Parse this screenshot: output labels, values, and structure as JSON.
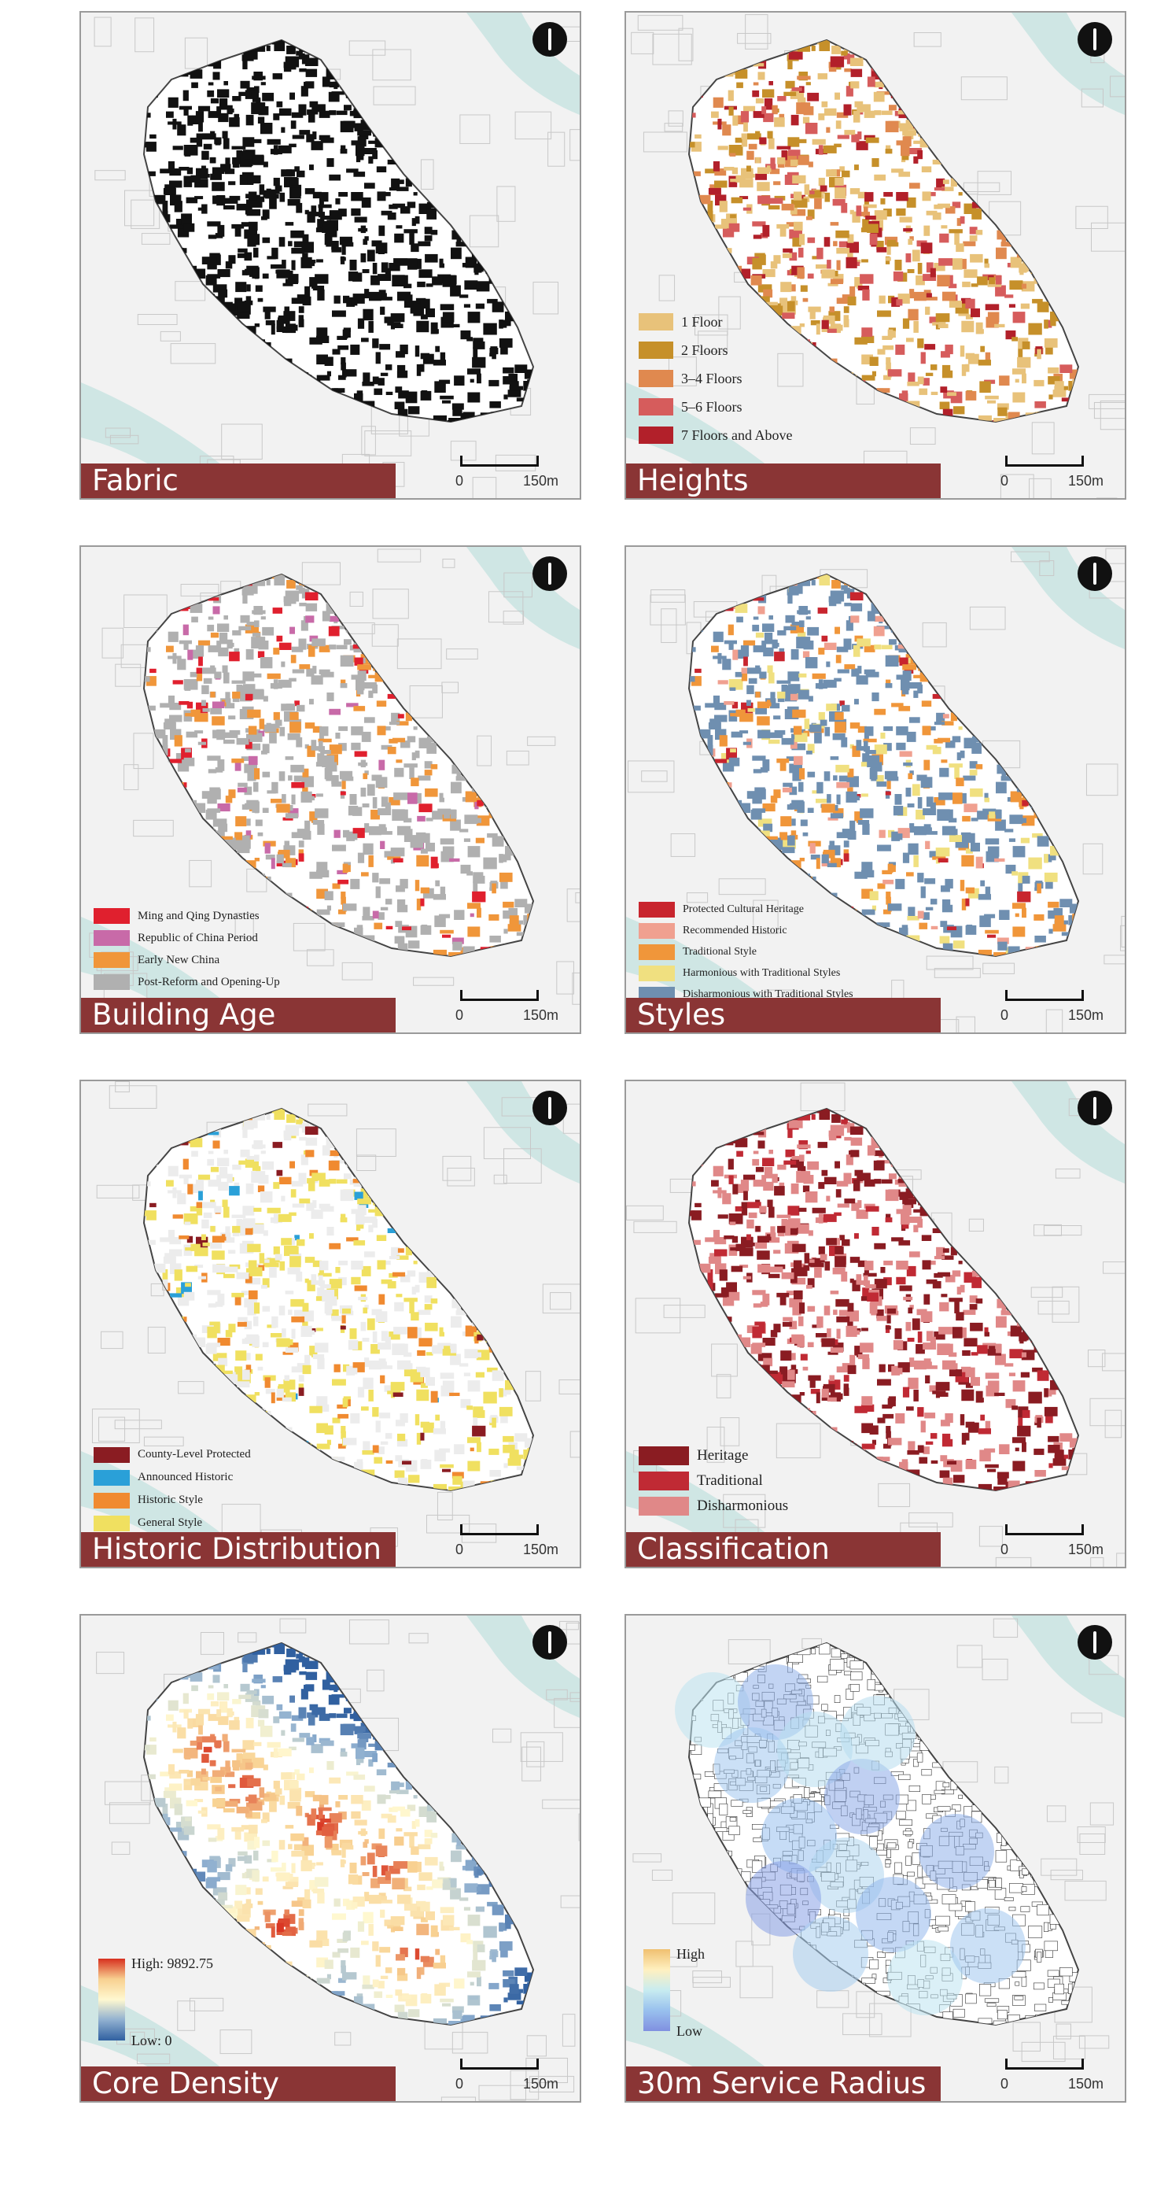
{
  "panels": [
    {
      "id": "fabric",
      "title": "Fabric",
      "scale": {
        "zero": "0",
        "max": "150m"
      },
      "legend": [],
      "ramp": null
    },
    {
      "id": "heights",
      "title": "Heights",
      "scale": {
        "zero": "0",
        "max": "150m"
      },
      "legend": [
        {
          "label": "1 Floor",
          "color": "#e8c27a"
        },
        {
          "label": "2 Floors",
          "color": "#c6902a"
        },
        {
          "label": "3–4 Floors",
          "color": "#e0894f"
        },
        {
          "label": "5–6 Floors",
          "color": "#d65c5c"
        },
        {
          "label": "7 Floors and Above",
          "color": "#b2202a"
        }
      ],
      "ramp": null
    },
    {
      "id": "building-age",
      "title": "Building Age",
      "scale": {
        "zero": "0",
        "max": "150m"
      },
      "legend": [
        {
          "label": "Ming and Qing Dynasties",
          "color": "#e0202e"
        },
        {
          "label": "Republic of China Period",
          "color": "#c86aa8"
        },
        {
          "label": "Early New China",
          "color": "#f0963a"
        },
        {
          "label": "Post-Reform and Opening-Up",
          "color": "#b0b0b0"
        }
      ],
      "ramp": null
    },
    {
      "id": "styles",
      "title": "Styles",
      "scale": {
        "zero": "0",
        "max": "150m"
      },
      "legend": [
        {
          "label": "Protected Cultural Heritage",
          "color": "#c8252e"
        },
        {
          "label": "Recommended Historic",
          "color": "#f0a090"
        },
        {
          "label": "Traditional Style",
          "color": "#f0963a"
        },
        {
          "label": "Harmonious with Traditional Styles",
          "color": "#f0e080"
        },
        {
          "label": "Disharmonious with Traditional Styles",
          "color": "#6f8fb0"
        }
      ],
      "ramp": null
    },
    {
      "id": "historic-distribution",
      "title": "Historic Distribution",
      "scale": {
        "zero": "0",
        "max": "150m"
      },
      "legend": [
        {
          "label": "County-Level Protected",
          "color": "#8a1c22"
        },
        {
          "label": "Announced Historic",
          "color": "#2aa0d8"
        },
        {
          "label": "Historic Style",
          "color": "#f08a30"
        },
        {
          "label": "General Style",
          "color": "#f0e060"
        }
      ],
      "ramp": null
    },
    {
      "id": "classification",
      "title": "Classification",
      "scale": {
        "zero": "0",
        "max": "150m"
      },
      "legend": [
        {
          "label": "Heritage",
          "color": "#8a1c22"
        },
        {
          "label": "Traditional",
          "color": "#c02a34"
        },
        {
          "label": "Disharmonious",
          "color": "#e08888"
        }
      ],
      "ramp": null
    },
    {
      "id": "core-density",
      "title": "Core Density",
      "scale": {
        "zero": "0",
        "max": "150m"
      },
      "legend": [],
      "ramp": {
        "high": "High: 9892.75",
        "low": "Low: 0",
        "colors": [
          "#d7301f",
          "#f8d090",
          "#fff8d0",
          "#90b0d0",
          "#3060a0"
        ]
      }
    },
    {
      "id": "service-radius",
      "title": "30m Service Radius",
      "scale": {
        "zero": "0",
        "max": "150m"
      },
      "legend": [],
      "ramp": {
        "high": "High",
        "low": "Low",
        "colors": [
          "#f0c070",
          "#fff0c0",
          "#c8ecf0",
          "#98c0ee",
          "#8090e0"
        ]
      }
    }
  ],
  "colors": {
    "title_band": "#8a3535",
    "river": "#cfe6e4",
    "context": "#d8d8d8"
  }
}
